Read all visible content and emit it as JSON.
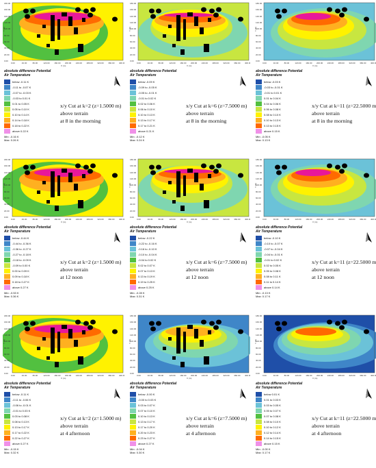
{
  "legend_title_line1": "absolute difference Potential",
  "legend_title_line2": "Air Temperature",
  "axis": {
    "y_label": "Y (m)",
    "x_label": "X (m)",
    "y_ticks": [
      "180.00",
      "170.00",
      "160.00",
      "150.00",
      "140.00",
      "130.00",
      "120.00",
      "110.00",
      "100.00",
      "90.00",
      "80.00",
      "70.00",
      "60.00",
      "50.00",
      "40.00",
      "30.00",
      "20.00",
      "10.00",
      "0.00"
    ],
    "x_ticks": [
      "0.00",
      "20.00",
      "40.00",
      "60.00",
      "80.00",
      "100.00",
      "120.00",
      "140.00",
      "160.00",
      "180.00",
      "200.00",
      "220.00",
      "240.00",
      "260.00",
      "280.00",
      "300.00",
      "320.00",
      "340.00",
      "360.00",
      "380.00",
      "400.00"
    ]
  },
  "colors": {
    "c0": "#1f4fa8",
    "c1": "#3f86c8",
    "c2": "#6bc2d8",
    "c3": "#7fd6b0",
    "c4": "#52c040",
    "c5": "#c8e640",
    "c6": "#fff200",
    "c7": "#ffb020",
    "c8": "#ff6a00",
    "c9": "#e8189a",
    "c10": "#f090e8"
  },
  "panels": [
    {
      "cut": "x/y Cut at k=2 (z=1.5000 m)",
      "terrain": "above terrain",
      "time": "at 8 in the morning",
      "legend": [
        "below -0.11 K",
        "-0.11 to -0.07 K",
        "-0.07 to -0.03 K",
        "-0.03 to 0.01 K",
        "0.01 to 0.05 K",
        "0.05 to 0.10 K",
        "0.10 to 0.14 K",
        "0.14 to 0.18 K",
        "0.18 to 0.22 K",
        "above 0.22 K"
      ],
      "min": "Min: -0.16 K",
      "max": "Max: 0.26 K",
      "mapstyle": "A"
    },
    {
      "cut": "x/y Cut at k=6 (z=7.5000 m)",
      "terrain": "above terrain",
      "time": "at 8 in the morning",
      "legend": [
        "below -0.09 K",
        "-0.09 to -0.05 K",
        "-0.05 to -0.01 K",
        "-0.01 to 0.02 K",
        "0.02 to 0.06 K",
        "0.06 to 0.10 K",
        "0.10 to 0.13 K",
        "0.13 to 0.17 K",
        "0.17 to 0.21 K",
        "above 0.21 K"
      ],
      "min": "Min: -0.12 K",
      "max": "Max: 0.24 K",
      "mapstyle": "B"
    },
    {
      "cut": "x/y Cut at k=11 (z=22.5000 m)",
      "terrain": "above terrain",
      "time": "at 8 in the morning",
      "legend": [
        "below -0.03 K",
        "-0.03 to -0.01 K",
        "-0.01 to 0.01 K",
        "0.01 to 0.04 K",
        "0.04 to 0.06 K",
        "0.06 to 0.08 K",
        "0.08 to 0.10 K",
        "0.10 to 0.13 K",
        "0.13 to 0.15 K",
        "above 0.15 K"
      ],
      "min": "Min: -0.05 K",
      "max": "Max: 0.13 K",
      "mapstyle": "C"
    },
    {
      "cut": "x/y Cut at k=2 (z=1.5000 m)",
      "terrain": "above terrain",
      "time": "at 12 noon",
      "legend": [
        "below -0.44 K",
        "-0.44 to -0.36 K",
        "-0.36 to -0.27 K",
        "-0.27 to -0.18 K",
        "-0.18 to -0.09 K",
        "-0.09 to 0.00 K",
        "0.00 to 0.09 K",
        "0.09 to 0.18 K",
        "0.18 to 0.27 K",
        "above 0.27 K"
      ],
      "min": "Min: -0.53 K",
      "max": "Max: 0.36 K",
      "mapstyle": "A"
    },
    {
      "cut": "x/y Cut at k=6 (z=7.5000 m)",
      "terrain": "above terrain",
      "time": "at 12 noon",
      "legend": [
        "below -0.22 K",
        "-0.22 to -0.16 K",
        "-0.16 to -0.10 K",
        "-0.10 to -0.04 K",
        "-0.04 to 0.02 K",
        "0.02 to 0.07 K",
        "0.07 to 0.13 K",
        "0.13 to 0.19 K",
        "0.19 to 0.25 K",
        "above 0.25 K"
      ],
      "min": "Min: -0.28 K",
      "max": "Max: 0.31 K",
      "mapstyle": "B"
    },
    {
      "cut": "x/y Cut at k=11 (z=22.5000 m)",
      "terrain": "above terrain",
      "time": "at 12 noon",
      "legend": [
        "below -0.10 K",
        "-0.10 to -0.07 K",
        "-0.07 to -0.04 K",
        "-0.04 to -0.01 K",
        "-0.01 to 0.02 K",
        "0.02 to 0.05 K",
        "0.05 to 0.08 K",
        "0.08 to 0.11 K",
        "0.11 to 0.14 K",
        "above 0.14 K"
      ],
      "min": "Min: -0.13 K",
      "max": "Max: 0.17 K",
      "mapstyle": "C"
    },
    {
      "cut": "x/y Cut at k=2 (z=1.5000 m)",
      "terrain": "above terrain",
      "time": "at 4 afternoon",
      "legend": [
        "below -0.11 K",
        "-0.11 to -0.06 K",
        "-0.06 to -0.01 K",
        "-0.01 to 0.03 K",
        "0.03 to 0.08 K",
        "0.08 to 0.13 K",
        "0.13 to 0.17 K",
        "0.17 to 0.22 K",
        "0.22 to 0.27 K",
        "above 0.27 K"
      ],
      "min": "Min: -0.15 K",
      "max": "Max: 0.32 K",
      "mapstyle": "A"
    },
    {
      "cut": "x/y Cut at k=6 (z=7.5000 m)",
      "terrain": "above terrain",
      "time": "at 4 afternoon",
      "legend": [
        "below -0.00 K",
        "-0.00 to 0.03 K",
        "0.03 to 0.07 K",
        "0.07 to 0.10 K",
        "0.10 to 0.13 K",
        "0.13 to 0.17 K",
        "0.17 to 0.20 K",
        "0.20 to 0.23 K",
        "0.23 to 0.27 K",
        "above 0.27 K"
      ],
      "min": "Min: -0.04 K",
      "max": "Max: 0.30 K",
      "mapstyle": "D"
    },
    {
      "cut": "x/y Cut at k=11 (z=22.5000 m)",
      "terrain": "above terrain",
      "time": "at 4 afternoon",
      "legend": [
        "below 0.01 K",
        "0.01 to 0.03 K",
        "0.03 to 0.05 K",
        "0.05 to 0.07 K",
        "0.07 to 0.08 K",
        "0.08 to 0.10 K",
        "0.10 to 0.12 K",
        "0.12 to 0.14 K",
        "0.14 to 0.15 K",
        "above 0.15 K"
      ],
      "min": "Min: -0.00 K",
      "max": "Max: 0.17 K",
      "mapstyle": "E"
    }
  ]
}
